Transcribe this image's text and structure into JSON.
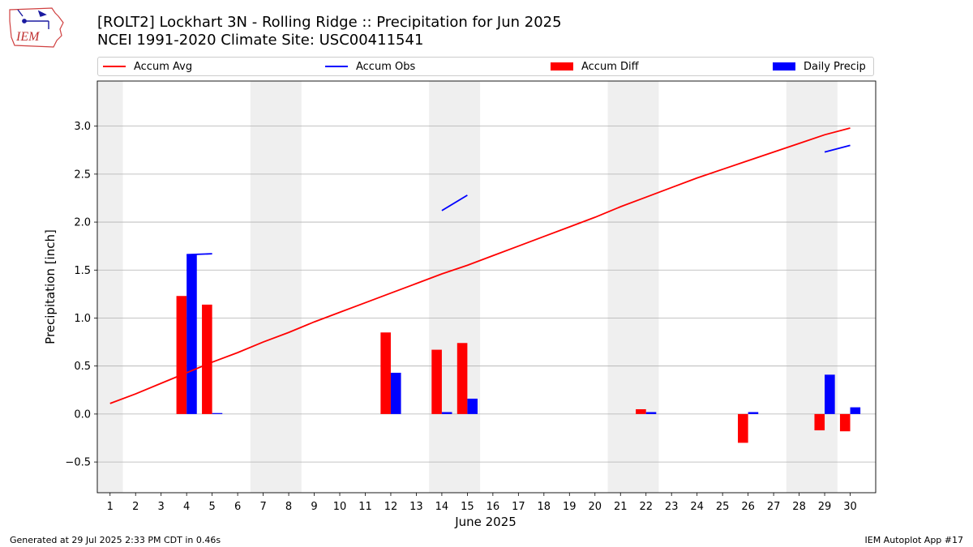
{
  "header": {
    "title_line1": "[ROLT2] Lockhart 3N - Rolling Ridge :: Precipitation for Jun 2025",
    "title_line2": "NCEI 1991-2020 Climate Site: USC00411541",
    "logo_text": "IEM"
  },
  "footer": {
    "left": "Generated at 29 Jul 2025 2:33 PM CDT in 0.46s",
    "right": "IEM Autoplot App #17"
  },
  "colors": {
    "avg": "#ff0000",
    "obs": "#0000ff",
    "diff": "#ff0000",
    "daily": "#0000ff",
    "weekend": "#efefef",
    "grid": "#b0b0b0"
  },
  "chart_data": {
    "type": "bar",
    "title": "[ROLT2] Lockhart 3N - Rolling Ridge :: Precipitation for Jun 2025",
    "xlabel": "June 2025",
    "ylabel": "Precipitation [inch]",
    "xlim": [
      0.5,
      31
    ],
    "ylim": [
      -0.82,
      3.47
    ],
    "yticks": [
      -0.5,
      0.0,
      0.5,
      1.0,
      1.5,
      2.0,
      2.5,
      3.0
    ],
    "ytick_labels": [
      "−0.5",
      "0.0",
      "0.5",
      "1.0",
      "1.5",
      "2.0",
      "2.5",
      "3.0"
    ],
    "x": [
      1,
      2,
      3,
      4,
      5,
      6,
      7,
      8,
      9,
      10,
      11,
      12,
      13,
      14,
      15,
      16,
      17,
      18,
      19,
      20,
      21,
      22,
      23,
      24,
      25,
      26,
      27,
      28,
      29,
      30
    ],
    "xtick_labels": [
      "1",
      "2",
      "3",
      "4",
      "5",
      "6",
      "7",
      "8",
      "9",
      "10",
      "11",
      "12",
      "13",
      "14",
      "15",
      "16",
      "17",
      "18",
      "19",
      "20",
      "21",
      "22",
      "23",
      "24",
      "25",
      "26",
      "27",
      "28",
      "29",
      "30"
    ],
    "weekend_spans": [
      [
        0.5,
        1.5
      ],
      [
        6.5,
        8.5
      ],
      [
        13.5,
        15.5
      ],
      [
        20.5,
        22.5
      ],
      [
        27.5,
        29.5
      ]
    ],
    "legend": [
      "Accum Avg",
      "Accum Obs",
      "Accum Diff",
      "Daily Precip"
    ],
    "series": [
      {
        "name": "Accum Avg",
        "kind": "line",
        "values": [
          0.11,
          0.21,
          0.32,
          0.43,
          0.54,
          0.64,
          0.75,
          0.85,
          0.96,
          1.06,
          1.16,
          1.26,
          1.36,
          1.46,
          1.55,
          1.65,
          1.75,
          1.85,
          1.95,
          2.05,
          2.16,
          2.26,
          2.36,
          2.46,
          2.55,
          2.64,
          2.73,
          2.82,
          2.91,
          2.98
        ]
      },
      {
        "name": "Accum Obs",
        "kind": "line",
        "values": [
          null,
          null,
          null,
          1.66,
          1.67,
          null,
          null,
          null,
          null,
          null,
          null,
          null,
          null,
          2.12,
          2.28,
          null,
          null,
          null,
          null,
          null,
          null,
          null,
          null,
          null,
          null,
          null,
          null,
          null,
          2.73,
          2.8
        ]
      },
      {
        "name": "Accum Diff",
        "kind": "bar",
        "values": [
          null,
          null,
          null,
          1.23,
          1.14,
          null,
          null,
          null,
          null,
          null,
          null,
          0.85,
          null,
          0.67,
          0.74,
          null,
          null,
          null,
          null,
          null,
          null,
          0.05,
          null,
          null,
          null,
          -0.3,
          null,
          null,
          -0.17,
          -0.18
        ]
      },
      {
        "name": "Daily Precip",
        "kind": "bar",
        "values": [
          0,
          0,
          0,
          1.66,
          0.01,
          0,
          0,
          0,
          0,
          0,
          0,
          0.43,
          0,
          0.02,
          0.16,
          0,
          0,
          0,
          0,
          0,
          0,
          0.02,
          0,
          0,
          0,
          0.02,
          0,
          0,
          0.41,
          0.07
        ]
      }
    ]
  }
}
